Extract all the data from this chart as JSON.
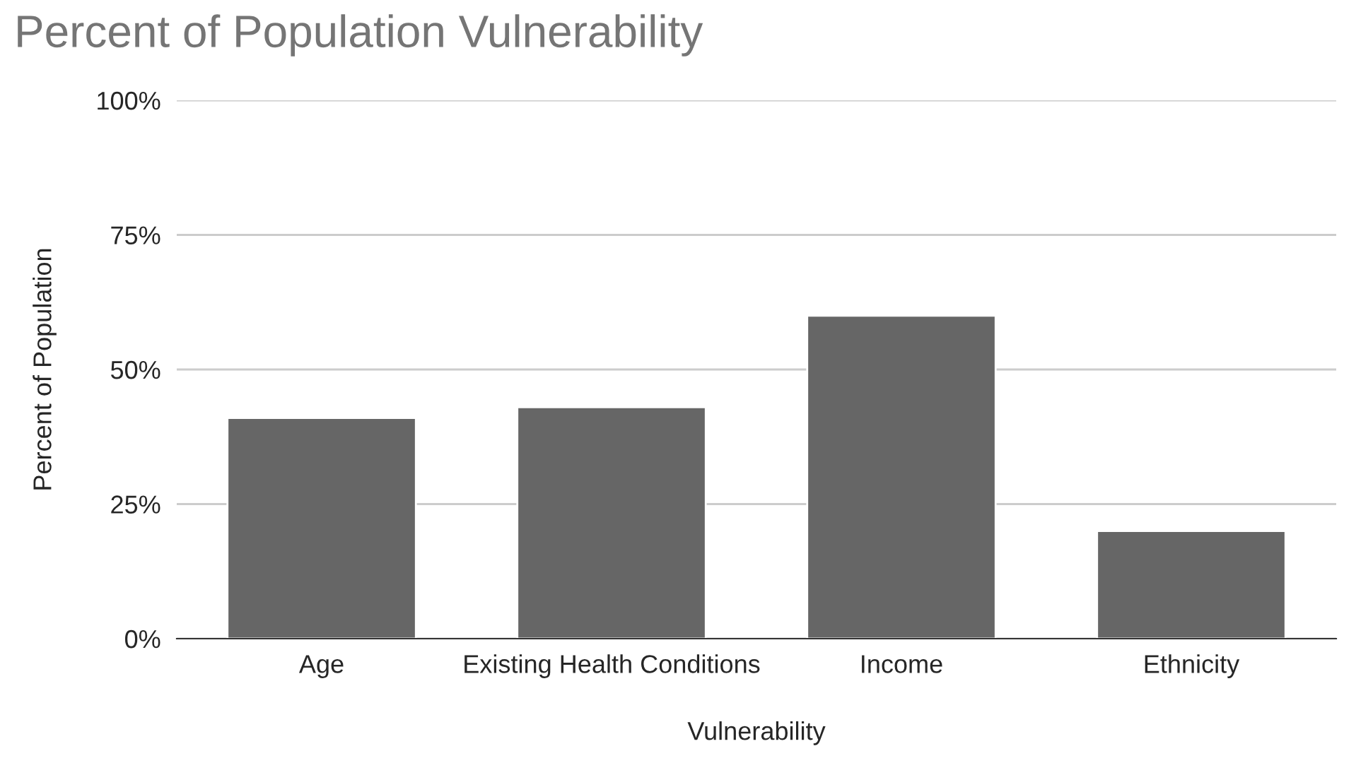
{
  "chart_data": {
    "type": "bar",
    "title": "Percent of Population Vulnerability",
    "xlabel": "Vulnerability",
    "ylabel": "Percent of Population",
    "categories": [
      "Age",
      "Existing Health Conditions",
      "Income",
      "Ethnicity"
    ],
    "values": [
      41,
      43,
      60,
      20
    ],
    "color": "#666666",
    "ylim": [
      0,
      100
    ],
    "yticks": [
      {
        "value": 0,
        "label": "0%"
      },
      {
        "value": 25,
        "label": "25%"
      },
      {
        "value": 50,
        "label": "50%"
      },
      {
        "value": 75,
        "label": "75%"
      },
      {
        "value": 100,
        "label": "100%"
      }
    ],
    "grid": "y",
    "legend": false
  }
}
